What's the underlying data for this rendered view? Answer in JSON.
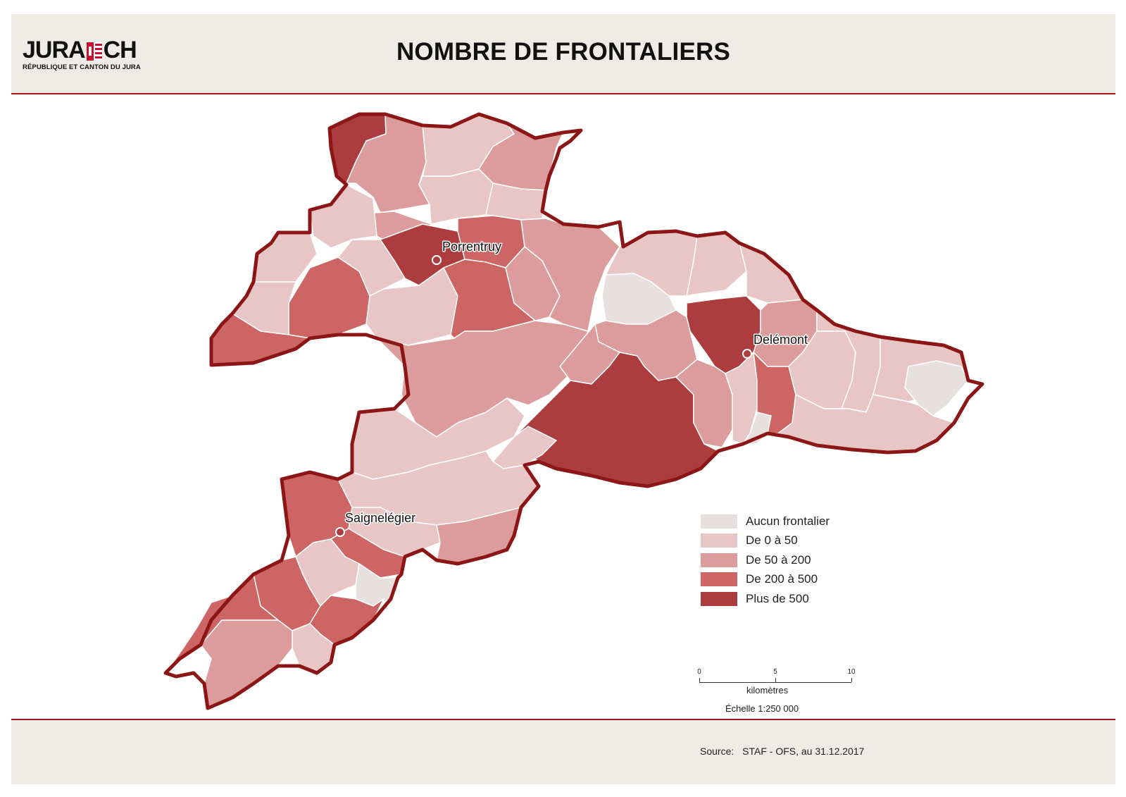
{
  "header": {
    "logo_text_left": "JURA",
    "logo_text_right": "CH",
    "logo_subtitle": "RÉPUBLIQUE ET CANTON DU JURA",
    "title": "NOMBRE DE FRONTALIERS"
  },
  "map": {
    "cities": [
      {
        "name": "Porrentruy"
      },
      {
        "name": "Delémont"
      },
      {
        "name": "Saignelégier"
      }
    ],
    "legend": [
      {
        "label": "Aucun frontalier",
        "color": "#e8e0df"
      },
      {
        "label": "De 0 à 50",
        "color": "#e8c6c6"
      },
      {
        "label": "De 50 à 200",
        "color": "#dc9c9c"
      },
      {
        "label": "De 200 à 500",
        "color": "#cd6565"
      },
      {
        "label": "Plus de 500",
        "color": "#ad3c3e"
      }
    ],
    "border_color": "#8c1515",
    "scale": {
      "ticks": [
        "0",
        "5",
        "10"
      ],
      "unit": "kilomètres",
      "ratio": "Échelle 1:250 000"
    }
  },
  "footer": {
    "source_label": "Source:",
    "source_text": "STAF - OFS, au 31.12.2017"
  }
}
